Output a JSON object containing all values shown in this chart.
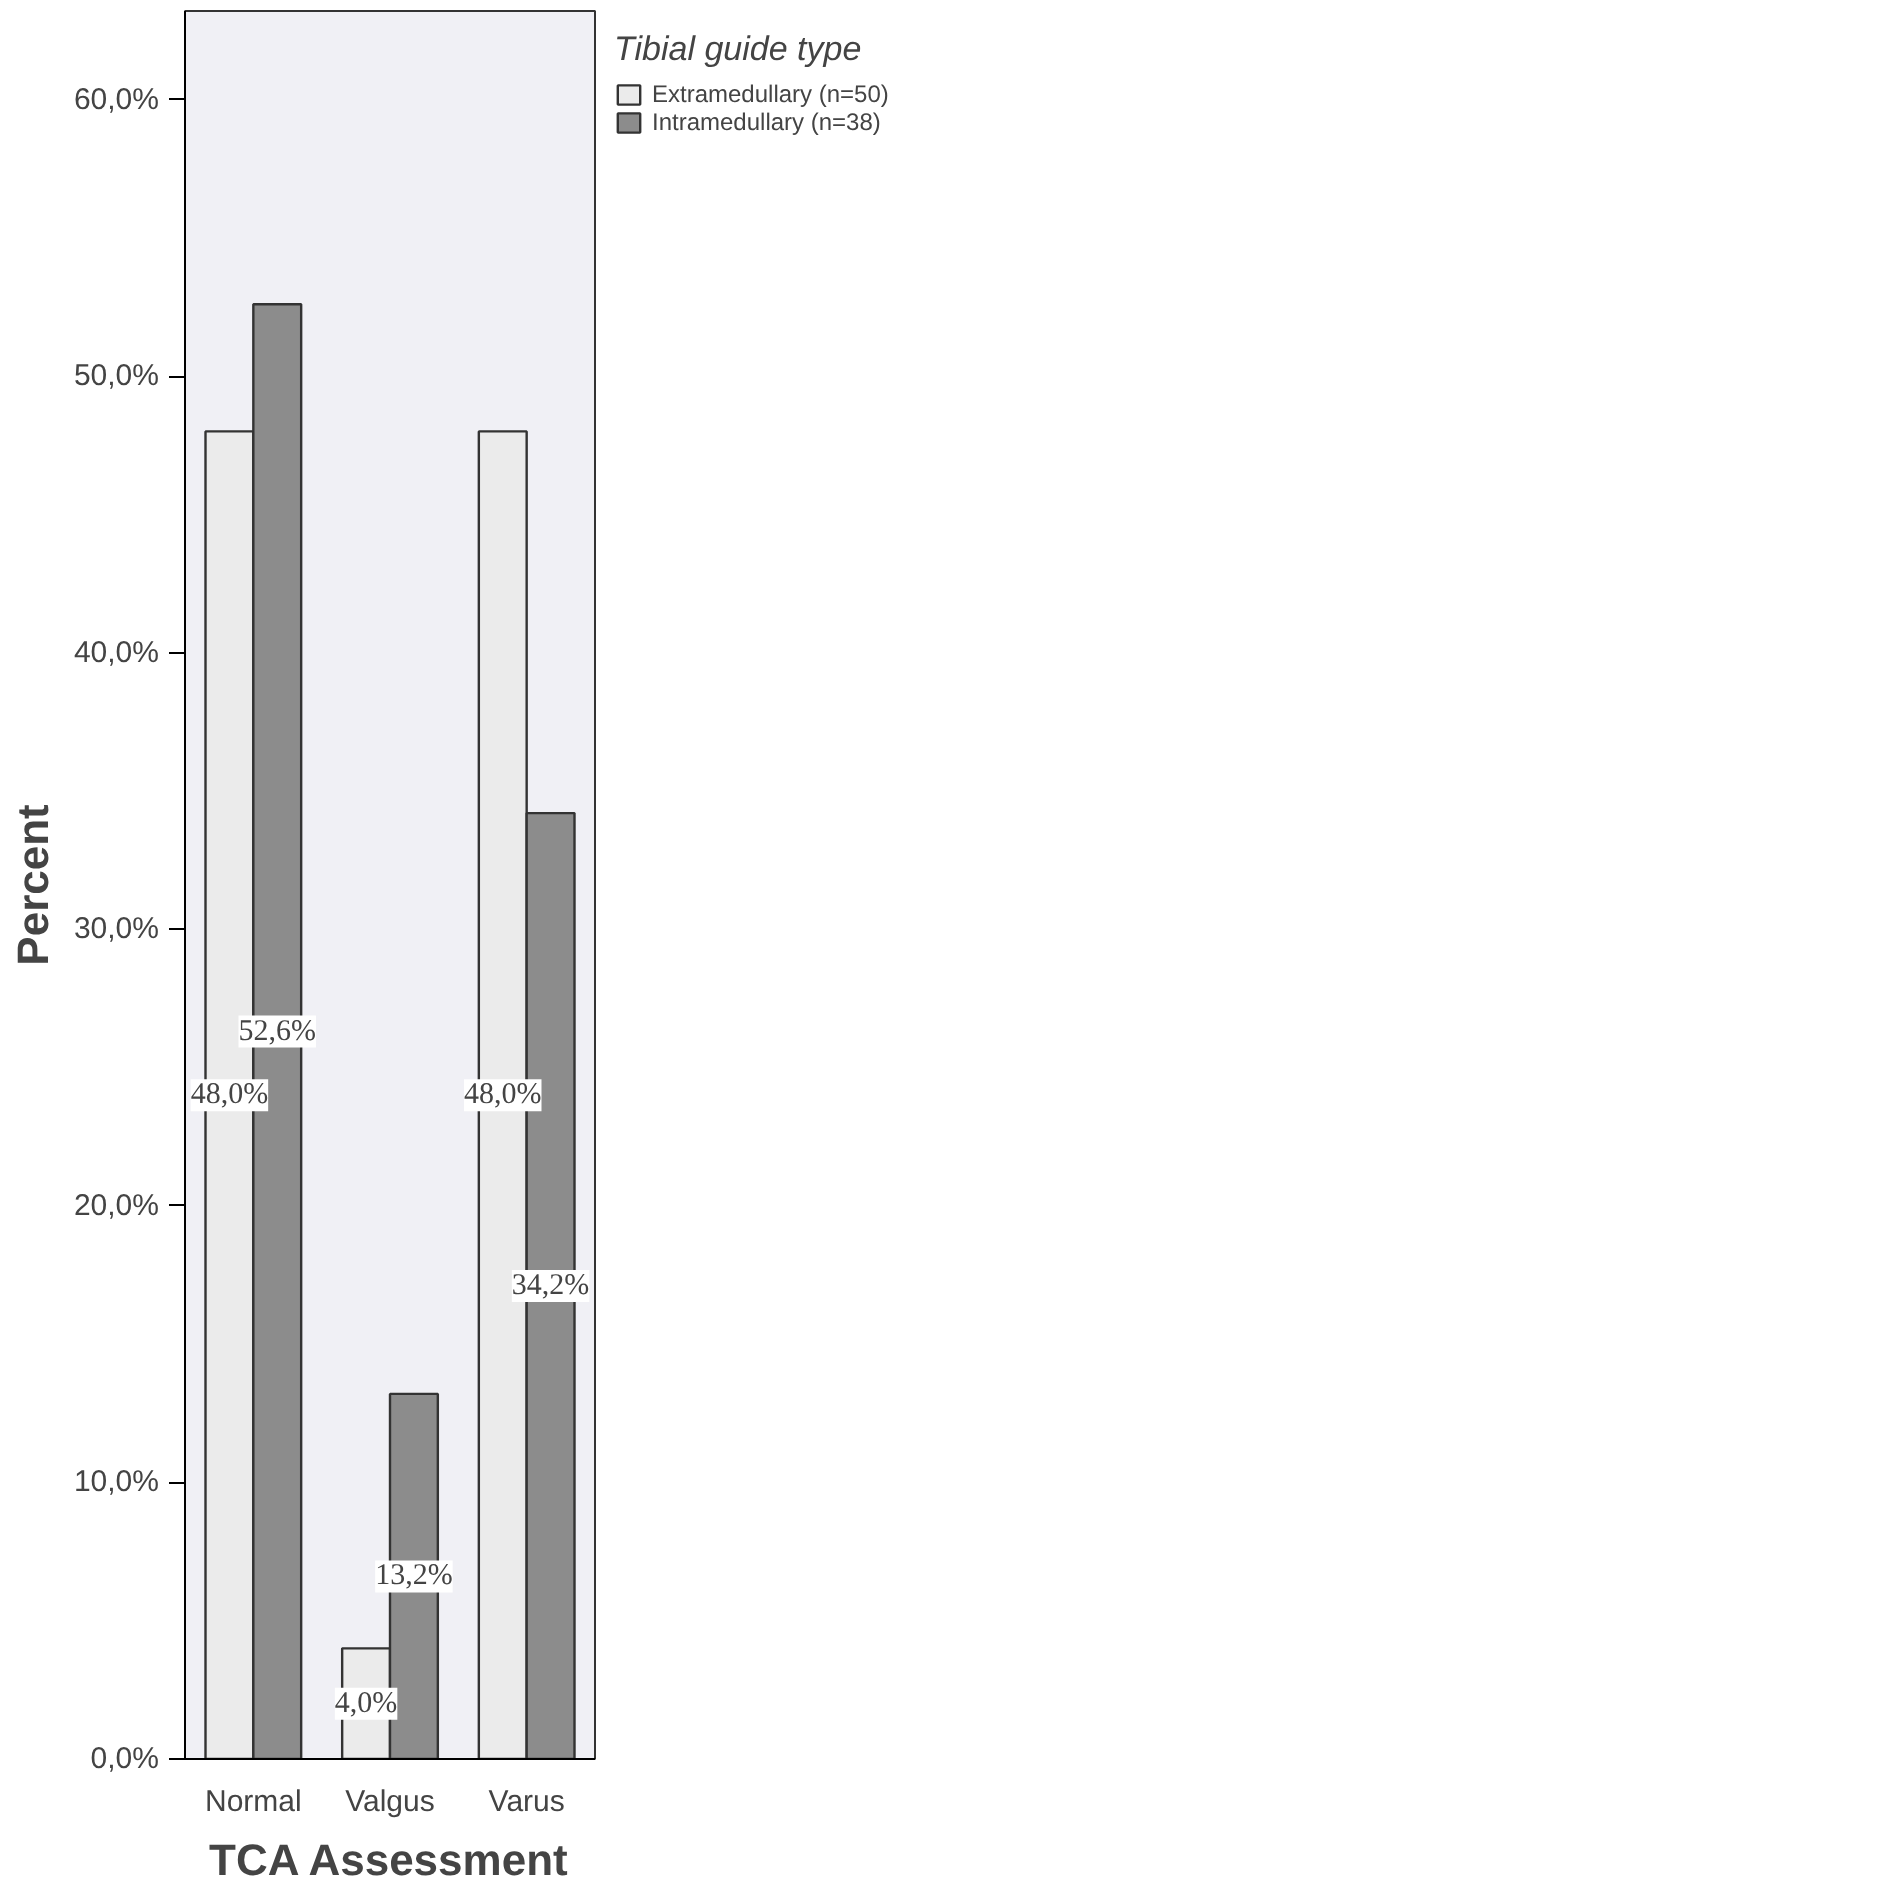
{
  "chart_data": {
    "type": "bar",
    "xlabel": "TCA Assessment",
    "ylabel": "Percent",
    "legend_title": "Tibial guide type",
    "categories": [
      "Normal",
      "Valgus",
      "Varus"
    ],
    "series": [
      {
        "name": "Extramedullary (n=50)",
        "color": "#ebebeb",
        "values": [
          48.0,
          4.0,
          48.0
        ],
        "value_labels": [
          "48,0%",
          "4,0%",
          "48,0%"
        ]
      },
      {
        "name": "Intramedullary (n=38)",
        "color": "#8c8c8c",
        "values": [
          52.6,
          13.2,
          34.2
        ],
        "value_labels": [
          "52,6%",
          "13,2%",
          "34,2%"
        ]
      }
    ],
    "ylim": [
      0,
      63.2
    ],
    "yticks": [
      {
        "value": 0,
        "label": "0,0%"
      },
      {
        "value": 10,
        "label": "10,0%"
      },
      {
        "value": 20,
        "label": "20,0%"
      },
      {
        "value": 30,
        "label": "30,0%"
      },
      {
        "value": 40,
        "label": "40,0%"
      },
      {
        "value": 50,
        "label": "50,0%"
      },
      {
        "value": 60,
        "label": "60,0%"
      }
    ],
    "grid": false,
    "legend": "top right"
  }
}
